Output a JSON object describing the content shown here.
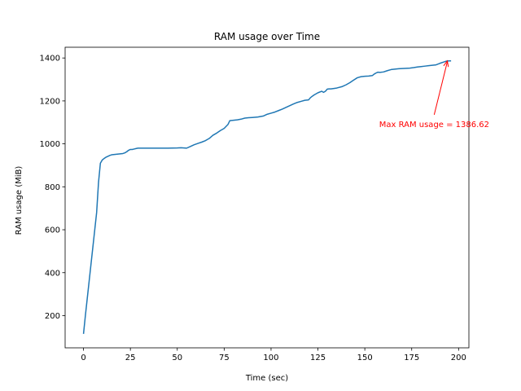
{
  "chart_data": {
    "type": "line",
    "title": "RAM usage over Time",
    "xlabel": "Time (sec)",
    "ylabel": "RAM usage (MiB)",
    "xlim": [
      -9.8,
      205.5
    ],
    "ylim": [
      50,
      1450
    ],
    "xticks": [
      0,
      25,
      50,
      75,
      100,
      125,
      150,
      175,
      200
    ],
    "yticks": [
      200,
      400,
      600,
      800,
      1000,
      1200,
      1400
    ],
    "grid": false,
    "legend": "none",
    "series": [
      {
        "color": "#1f77b4",
        "x": [
          0,
          1,
          2,
          3,
          4,
          5,
          6,
          7,
          8,
          9,
          10,
          11,
          12,
          13,
          14,
          15,
          16,
          17,
          18,
          19,
          20,
          21,
          22,
          23,
          24,
          25,
          26,
          27,
          28,
          29,
          30,
          35,
          40,
          45,
          50,
          52,
          55,
          57,
          59,
          61,
          63,
          65,
          67,
          69,
          71,
          73,
          75,
          77,
          78,
          80,
          82,
          84,
          86,
          88,
          90,
          93,
          96,
          98,
          100,
          102,
          104,
          106,
          108,
          110,
          112,
          114,
          116,
          118,
          120,
          121,
          122,
          123,
          125,
          127,
          128,
          129,
          130,
          131,
          132,
          135,
          138,
          140,
          142,
          144,
          146,
          148,
          150,
          152,
          154,
          155,
          156,
          157,
          158,
          160,
          162,
          164,
          166,
          168,
          170,
          172,
          174,
          176,
          178,
          180,
          182,
          184,
          186,
          188,
          190,
          192,
          193,
          194,
          195,
          196
        ],
        "y": [
          115,
          200,
          280,
          360,
          440,
          520,
          600,
          680,
          820,
          910,
          925,
          932,
          938,
          942,
          946,
          949,
          950,
          951,
          952,
          953,
          954,
          955,
          958,
          963,
          970,
          974,
          974,
          976,
          978,
          980,
          980,
          980,
          980,
          980,
          981,
          982,
          980,
          988,
          996,
          1002,
          1008,
          1015,
          1025,
          1040,
          1050,
          1062,
          1072,
          1090,
          1108,
          1110,
          1112,
          1115,
          1120,
          1122,
          1123,
          1125,
          1130,
          1138,
          1143,
          1148,
          1155,
          1162,
          1170,
          1178,
          1186,
          1193,
          1198,
          1203,
          1205,
          1215,
          1222,
          1228,
          1238,
          1245,
          1240,
          1245,
          1255,
          1256,
          1256,
          1260,
          1267,
          1275,
          1285,
          1297,
          1308,
          1313,
          1315,
          1316,
          1318,
          1325,
          1330,
          1334,
          1333,
          1335,
          1341,
          1346,
          1348,
          1350,
          1351,
          1352,
          1353,
          1355,
          1358,
          1360,
          1362,
          1364,
          1366,
          1368,
          1375,
          1381,
          1384,
          1386,
          1386.62,
          1386.62
        ]
      }
    ],
    "annotation": {
      "text": "Max RAM usage = 1386.62",
      "color": "#ff0000",
      "point": [
        194,
        1386.62
      ],
      "text_pos": [
        187,
        1090
      ]
    }
  }
}
